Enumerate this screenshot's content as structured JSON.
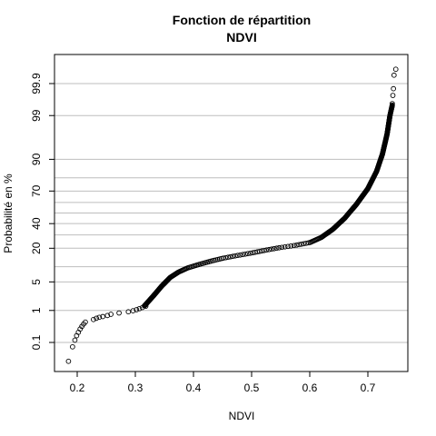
{
  "chart_data": {
    "type": "scatter",
    "title": "Fonction de répartition",
    "subtitle": "NDVI",
    "xlabel": "NDVI",
    "ylabel": "Probabilité en %",
    "xlim": [
      0.17,
      0.76
    ],
    "x_ticks": [
      0.2,
      0.3,
      0.4,
      0.5,
      0.6,
      0.7
    ],
    "x_tick_labels": [
      "0.2",
      "0.3",
      "0.4",
      "0.5",
      "0.6",
      "0.7"
    ],
    "y_scale": "normal-probability",
    "y_ticks_percent": [
      0.1,
      1,
      5,
      20,
      40,
      70,
      90,
      99,
      99.9
    ],
    "y_tick_labels": [
      "0.1",
      "1",
      "5",
      "20",
      "40",
      "70",
      "90",
      "99",
      "99.9"
    ],
    "y_gridlines_percent": [
      0.1,
      1,
      5,
      10,
      20,
      30,
      40,
      50,
      60,
      70,
      80,
      90,
      99,
      99.9
    ],
    "grid": "horizontal",
    "marker": "open-circle",
    "cdf_curve": {
      "x": [
        0.185,
        0.192,
        0.197,
        0.203,
        0.207,
        0.212,
        0.23,
        0.25,
        0.28,
        0.3,
        0.315,
        0.33,
        0.345,
        0.36,
        0.375,
        0.39,
        0.41,
        0.43,
        0.45,
        0.475,
        0.5,
        0.525,
        0.55,
        0.575,
        0.6,
        0.62,
        0.64,
        0.66,
        0.68,
        0.7,
        0.715,
        0.725,
        0.733,
        0.738,
        0.742
      ],
      "percent": [
        0.02,
        0.07,
        0.15,
        0.25,
        0.35,
        0.45,
        0.6,
        0.75,
        0.9,
        1.05,
        1.3,
        2.3,
        4.0,
        6.2,
        8.0,
        9.5,
        11.0,
        12.5,
        14.0,
        15.5,
        17.0,
        18.8,
        20.5,
        22.0,
        24.0,
        28.0,
        35.0,
        45.0,
        58.0,
        72.0,
        84.0,
        92.0,
        97.0,
        99.0,
        99.5
      ]
    },
    "sparse_points": [
      {
        "x": 0.192,
        "percent": 0.07
      },
      {
        "x": 0.196,
        "percent": 0.12
      },
      {
        "x": 0.199,
        "percent": 0.17
      },
      {
        "x": 0.202,
        "percent": 0.22
      },
      {
        "x": 0.205,
        "percent": 0.28
      },
      {
        "x": 0.208,
        "percent": 0.34
      },
      {
        "x": 0.211,
        "percent": 0.4
      },
      {
        "x": 0.214,
        "percent": 0.46
      },
      {
        "x": 0.228,
        "percent": 0.55
      },
      {
        "x": 0.233,
        "percent": 0.6
      },
      {
        "x": 0.238,
        "percent": 0.64
      },
      {
        "x": 0.244,
        "percent": 0.67
      },
      {
        "x": 0.252,
        "percent": 0.72
      },
      {
        "x": 0.258,
        "percent": 0.78
      },
      {
        "x": 0.272,
        "percent": 0.85
      },
      {
        "x": 0.288,
        "percent": 0.92
      },
      {
        "x": 0.296,
        "percent": 0.98
      },
      {
        "x": 0.302,
        "percent": 1.05
      },
      {
        "x": 0.307,
        "percent": 1.12
      },
      {
        "x": 0.312,
        "percent": 1.2
      },
      {
        "x": 0.318,
        "percent": 1.3
      },
      {
        "x": 0.742,
        "percent": 99.55
      },
      {
        "x": 0.743,
        "percent": 99.75
      },
      {
        "x": 0.744,
        "percent": 99.85
      },
      {
        "x": 0.745,
        "percent": 99.95
      },
      {
        "x": 0.748,
        "percent": 99.97
      }
    ],
    "min_point": {
      "x": 0.185,
      "percent": 0.02
    }
  }
}
